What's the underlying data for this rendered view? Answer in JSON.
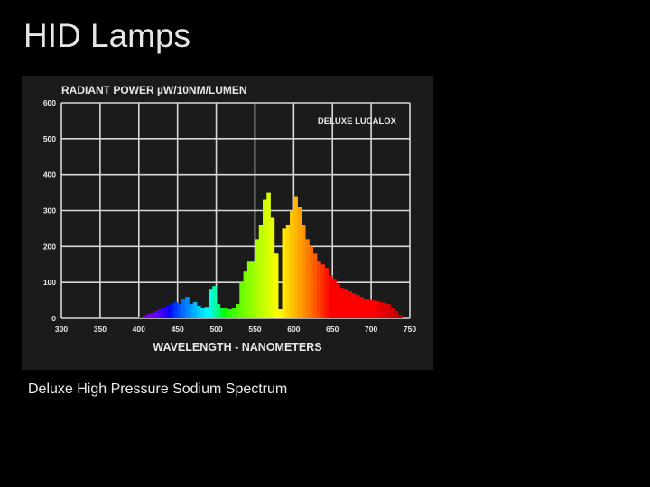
{
  "slide": {
    "title": "HID Lamps",
    "caption": "Deluxe High Pressure Sodium Spectrum"
  },
  "colors": {
    "background": "#000000",
    "panel": "#1b1b1b",
    "grid": "#d8d8d8",
    "text": "#e8e8e8"
  },
  "chart_data": {
    "type": "bar",
    "title": "RADIANT POWER µW/10NM/LUMEN",
    "legend": "DELUXE LUCALOX",
    "xlabel": "WAVELENGTH - NANOMETERS",
    "ylabel": "",
    "xlim": [
      300,
      750
    ],
    "ylim": [
      0,
      600
    ],
    "xticks": [
      "300",
      "350",
      "400",
      "450",
      "500",
      "550",
      "600",
      "650",
      "700",
      "750"
    ],
    "yticks": [
      "0",
      "100",
      "200",
      "300",
      "400",
      "500",
      "600"
    ],
    "grid": true,
    "bar_width_nm": 5,
    "x": [
      400,
      405,
      410,
      415,
      420,
      425,
      430,
      435,
      440,
      445,
      450,
      455,
      460,
      465,
      470,
      475,
      480,
      485,
      490,
      495,
      500,
      505,
      510,
      515,
      520,
      525,
      530,
      535,
      540,
      545,
      550,
      555,
      560,
      565,
      570,
      575,
      580,
      585,
      590,
      595,
      600,
      605,
      610,
      615,
      620,
      625,
      630,
      635,
      640,
      645,
      650,
      655,
      660,
      665,
      670,
      675,
      680,
      685,
      690,
      695,
      700,
      705,
      710,
      715,
      720,
      725,
      730,
      735
    ],
    "values": [
      5,
      8,
      12,
      15,
      20,
      25,
      30,
      35,
      40,
      45,
      40,
      55,
      60,
      40,
      45,
      35,
      30,
      32,
      80,
      90,
      40,
      30,
      28,
      25,
      30,
      40,
      100,
      130,
      160,
      160,
      220,
      260,
      330,
      350,
      280,
      180,
      25,
      250,
      260,
      300,
      340,
      310,
      260,
      220,
      200,
      180,
      160,
      150,
      140,
      120,
      110,
      95,
      85,
      80,
      75,
      70,
      65,
      60,
      55,
      52,
      50,
      48,
      45,
      43,
      40,
      30,
      20,
      10
    ]
  }
}
